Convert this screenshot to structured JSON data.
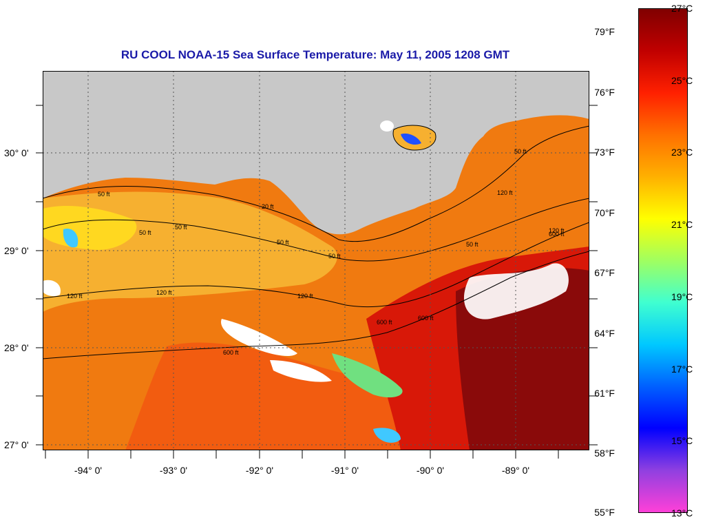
{
  "title": "RU COOL  NOAA-15  Sea Surface Temperature:  May 11, 2005 1208 GMT",
  "latitude_labels": [
    "30° 0'",
    "29° 0'",
    "28° 0'",
    "27° 0'"
  ],
  "longitude_labels": [
    "-94° 0'",
    "-93° 0'",
    "-92° 0'",
    "-91° 0'",
    "-90° 0'",
    "-89° 0'"
  ],
  "contour_labels": [
    "50 ft",
    "50 ft",
    "50 ft",
    "50 ft",
    "50 ft",
    "50 ft",
    "50 ft",
    "120 ft",
    "120 ft",
    "120 ft",
    "120 ft",
    "120 ft",
    "600 ft",
    "600 ft",
    "600 ft",
    "600 ft",
    "20 ft"
  ],
  "colorbar": {
    "fahrenheit_labels": [
      "79°F",
      "76°F",
      "73°F",
      "70°F",
      "67°F",
      "64°F",
      "61°F",
      "58°F",
      "55°F"
    ],
    "celsius_labels": [
      "27°C",
      "25°C",
      "23°C",
      "21°C",
      "19°C",
      "17°C",
      "15°C",
      "13°C"
    ],
    "celsius_range": [
      13,
      27
    ],
    "colors": [
      "#ff40d8",
      "#9040e0",
      "#0000ff",
      "#0060ff",
      "#00c8ff",
      "#40ffd0",
      "#a0ff60",
      "#ffff00",
      "#ffb000",
      "#ff7000",
      "#ff2000",
      "#c00000",
      "#800000"
    ]
  },
  "colors": {
    "land": "#c8c8c8",
    "title": "#1a1aa8",
    "warm_water": "#f07a10",
    "hot_water": "#8a0a0a",
    "cloud": "#ffffff"
  }
}
